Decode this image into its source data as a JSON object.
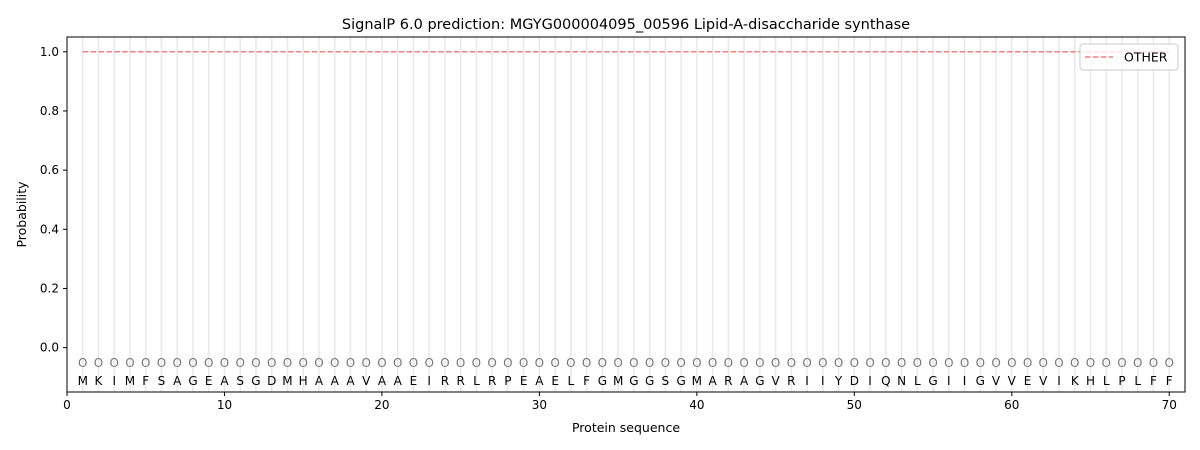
{
  "chart_data": {
    "type": "line",
    "title": "SignalP 6.0 prediction: MGYG000004095_00596 Lipid-A-disaccharide synthase",
    "xlabel": "Protein sequence",
    "ylabel": "Probability",
    "xlim": [
      0,
      71
    ],
    "ylim": [
      -0.15,
      1.05
    ],
    "xticks": [
      0,
      10,
      20,
      30,
      40,
      50,
      60,
      70
    ],
    "yticks": [
      0.0,
      0.2,
      0.4,
      0.6,
      0.8,
      1.0
    ],
    "ytick_labels": [
      "0.0",
      "0.2",
      "0.4",
      "0.6",
      "0.8",
      "1.0"
    ],
    "grid": "vertical lines at each residue",
    "legend_placement": "top-right",
    "sequence": [
      "M",
      "K",
      "I",
      "M",
      "F",
      "S",
      "A",
      "G",
      "E",
      "A",
      "S",
      "G",
      "D",
      "M",
      "H",
      "A",
      "A",
      "A",
      "V",
      "A",
      "A",
      "E",
      "I",
      "R",
      "R",
      "L",
      "R",
      "P",
      "E",
      "A",
      "E",
      "L",
      "F",
      "G",
      "M",
      "G",
      "G",
      "S",
      "G",
      "M",
      "A",
      "R",
      "A",
      "G",
      "V",
      "R",
      "I",
      "I",
      "Y",
      "D",
      "I",
      "Q",
      "N",
      "L",
      "G",
      "I",
      "I",
      "G",
      "V",
      "V",
      "E",
      "V",
      "I",
      "K",
      "H",
      "L",
      "P",
      "L",
      "F",
      "F"
    ],
    "predicted_labels": "OOOOOOOOOOOOOOOOOOOOOOOOOOOOOOOOOOOOOOOOOOOOOOOOOOOOOOOOOOOOOOOOOOOOOO",
    "series": [
      {
        "name": "OTHER",
        "color": "#f08080",
        "style": "dashed",
        "x_range": [
          1,
          70
        ],
        "value": 1.0
      }
    ]
  }
}
